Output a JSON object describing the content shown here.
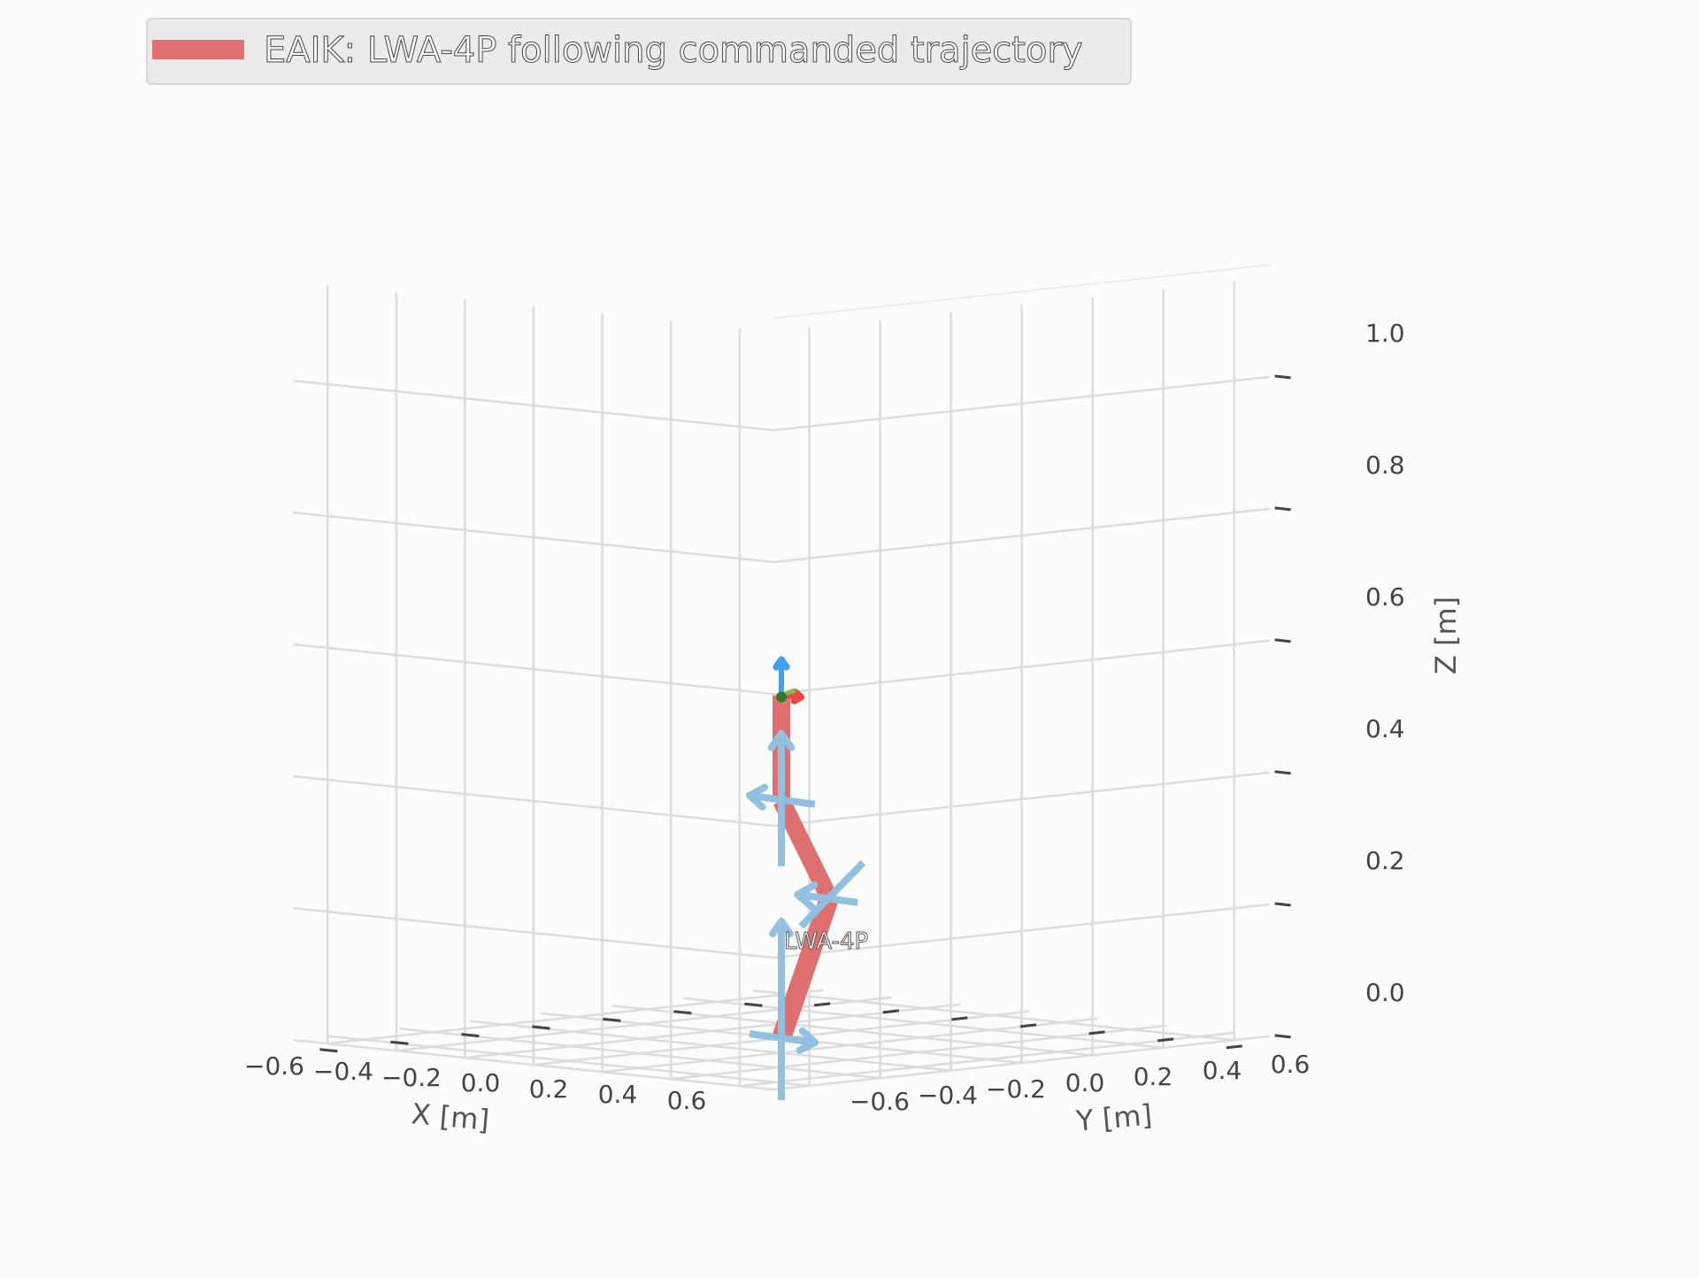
{
  "chart_data": {
    "type": "3d-line",
    "title": "",
    "legend": {
      "placement": "top-left",
      "entries": [
        {
          "label": "EAIK: LWA-4P following commanded trajectory",
          "color": "#e07070"
        }
      ]
    },
    "axes": {
      "x": {
        "label": "X [m]",
        "range": [
          -0.6,
          0.6
        ],
        "ticks": [
          -0.6,
          -0.4,
          -0.2,
          0.0,
          0.2,
          0.4,
          0.6
        ],
        "tick_labels": [
          "−0.6",
          "−0.4",
          "−0.2",
          "0.0",
          "0.2",
          "0.4",
          "0.6"
        ]
      },
      "y": {
        "label": "Y [m]",
        "range": [
          -0.6,
          0.6
        ],
        "ticks": [
          -0.6,
          -0.4,
          -0.2,
          0.0,
          0.2,
          0.4,
          0.6
        ],
        "tick_labels": [
          "−0.6",
          "−0.4",
          "−0.2",
          "0.0",
          "0.2",
          "0.4",
          "0.6"
        ]
      },
      "z": {
        "label": "Z [m]",
        "range": [
          0.0,
          1.0
        ],
        "ticks": [
          0.0,
          0.2,
          0.4,
          0.6,
          0.8,
          1.0
        ],
        "tick_labels": [
          "0.0",
          "0.2",
          "0.4",
          "0.6",
          "0.8",
          "1.0"
        ]
      }
    },
    "grid": true,
    "robot": {
      "name": "LWA-4P",
      "color": "#e07070",
      "joints": [
        {
          "x": 0.0,
          "y": 0.0,
          "z": 0.0
        },
        {
          "x": 0.14,
          "y": 0.0,
          "z": 0.22
        },
        {
          "x": 0.0,
          "y": 0.0,
          "z": 0.36
        },
        {
          "x": 0.0,
          "y": 0.0,
          "z": 0.52
        }
      ]
    },
    "colors": {
      "joint_axis": "#92c0e0",
      "frame_x": "#ee4444",
      "frame_y": "#88bb44",
      "frame_z": "#44a0ee",
      "grid": "#dcdcdc",
      "tick": "#444444"
    }
  }
}
